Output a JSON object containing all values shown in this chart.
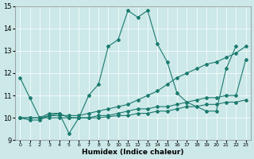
{
  "xlabel": "Humidex (Indice chaleur)",
  "xlim": [
    -0.5,
    23.5
  ],
  "ylim": [
    9,
    15
  ],
  "yticks": [
    9,
    10,
    11,
    12,
    13,
    14,
    15
  ],
  "xticks": [
    0,
    1,
    2,
    3,
    4,
    5,
    6,
    7,
    8,
    9,
    10,
    11,
    12,
    13,
    14,
    15,
    16,
    17,
    18,
    19,
    20,
    21,
    22,
    23
  ],
  "bg_color": "#cce8e8",
  "line_color": "#1a7a6e",
  "lines": [
    {
      "x": [
        0,
        1,
        2,
        3,
        4,
        5,
        6,
        7,
        8,
        9,
        10,
        11,
        12,
        13,
        14,
        15,
        16,
        17,
        18,
        19,
        20,
        21,
        22,
        23
      ],
      "y": [
        11.8,
        10.9,
        10.0,
        10.2,
        10.2,
        9.3,
        10.0,
        11.0,
        11.5,
        13.2,
        13.5,
        14.8,
        14.5,
        14.8,
        13.3,
        12.5,
        11.1,
        10.7,
        10.5,
        10.3,
        10.3,
        12.2,
        13.2,
        null
      ]
    },
    {
      "x": [
        0,
        1,
        2,
        3,
        4,
        5,
        6,
        7,
        8,
        9,
        10,
        11,
        12,
        13,
        14,
        15,
        16,
        17,
        18,
        19,
        20,
        21,
        22,
        23
      ],
      "y": [
        10.0,
        10.0,
        10.0,
        10.1,
        10.1,
        10.1,
        10.1,
        10.2,
        10.3,
        10.4,
        10.5,
        10.6,
        10.8,
        11.0,
        11.2,
        11.5,
        11.8,
        12.0,
        12.2,
        12.4,
        12.5,
        12.7,
        12.9,
        13.2
      ]
    },
    {
      "x": [
        0,
        1,
        2,
        3,
        4,
        5,
        6,
        7,
        8,
        9,
        10,
        11,
        12,
        13,
        14,
        15,
        16,
        17,
        18,
        19,
        20,
        21,
        22,
        23
      ],
      "y": [
        10.0,
        9.9,
        9.9,
        10.1,
        10.2,
        10.0,
        10.0,
        10.0,
        10.1,
        10.1,
        10.2,
        10.3,
        10.4,
        10.4,
        10.5,
        10.5,
        10.6,
        10.7,
        10.8,
        10.9,
        10.9,
        11.0,
        11.0,
        12.6
      ]
    },
    {
      "x": [
        0,
        1,
        2,
        3,
        4,
        5,
        6,
        7,
        8,
        9,
        10,
        11,
        12,
        13,
        14,
        15,
        16,
        17,
        18,
        19,
        20,
        21,
        22,
        23
      ],
      "y": [
        10.0,
        10.0,
        10.0,
        10.0,
        10.0,
        10.0,
        10.0,
        10.0,
        10.0,
        10.05,
        10.1,
        10.1,
        10.2,
        10.2,
        10.3,
        10.3,
        10.4,
        10.5,
        10.5,
        10.6,
        10.6,
        10.7,
        10.7,
        10.8
      ]
    }
  ]
}
